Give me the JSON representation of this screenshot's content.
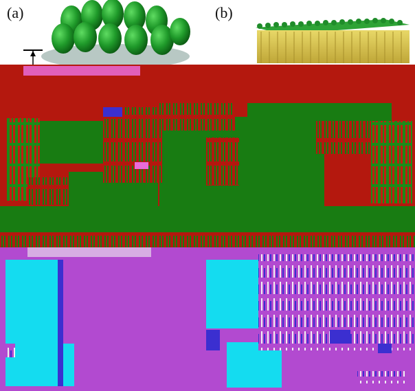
{
  "figure": {
    "panel_a_label": "(a)",
    "panel_b_label": "(b)"
  },
  "colors": {
    "green_disc": "#1f9a2a",
    "green_dark": "#0f6f1a",
    "lipid_head": "#2ea336",
    "lipid_tail": "#d9c64a",
    "substrate_red": "#b4180e",
    "green_band": "#187c12",
    "cyan_block": "#14dcf0",
    "magenta_block": "#b24ad0",
    "base_gray": "#b8c8c4"
  }
}
